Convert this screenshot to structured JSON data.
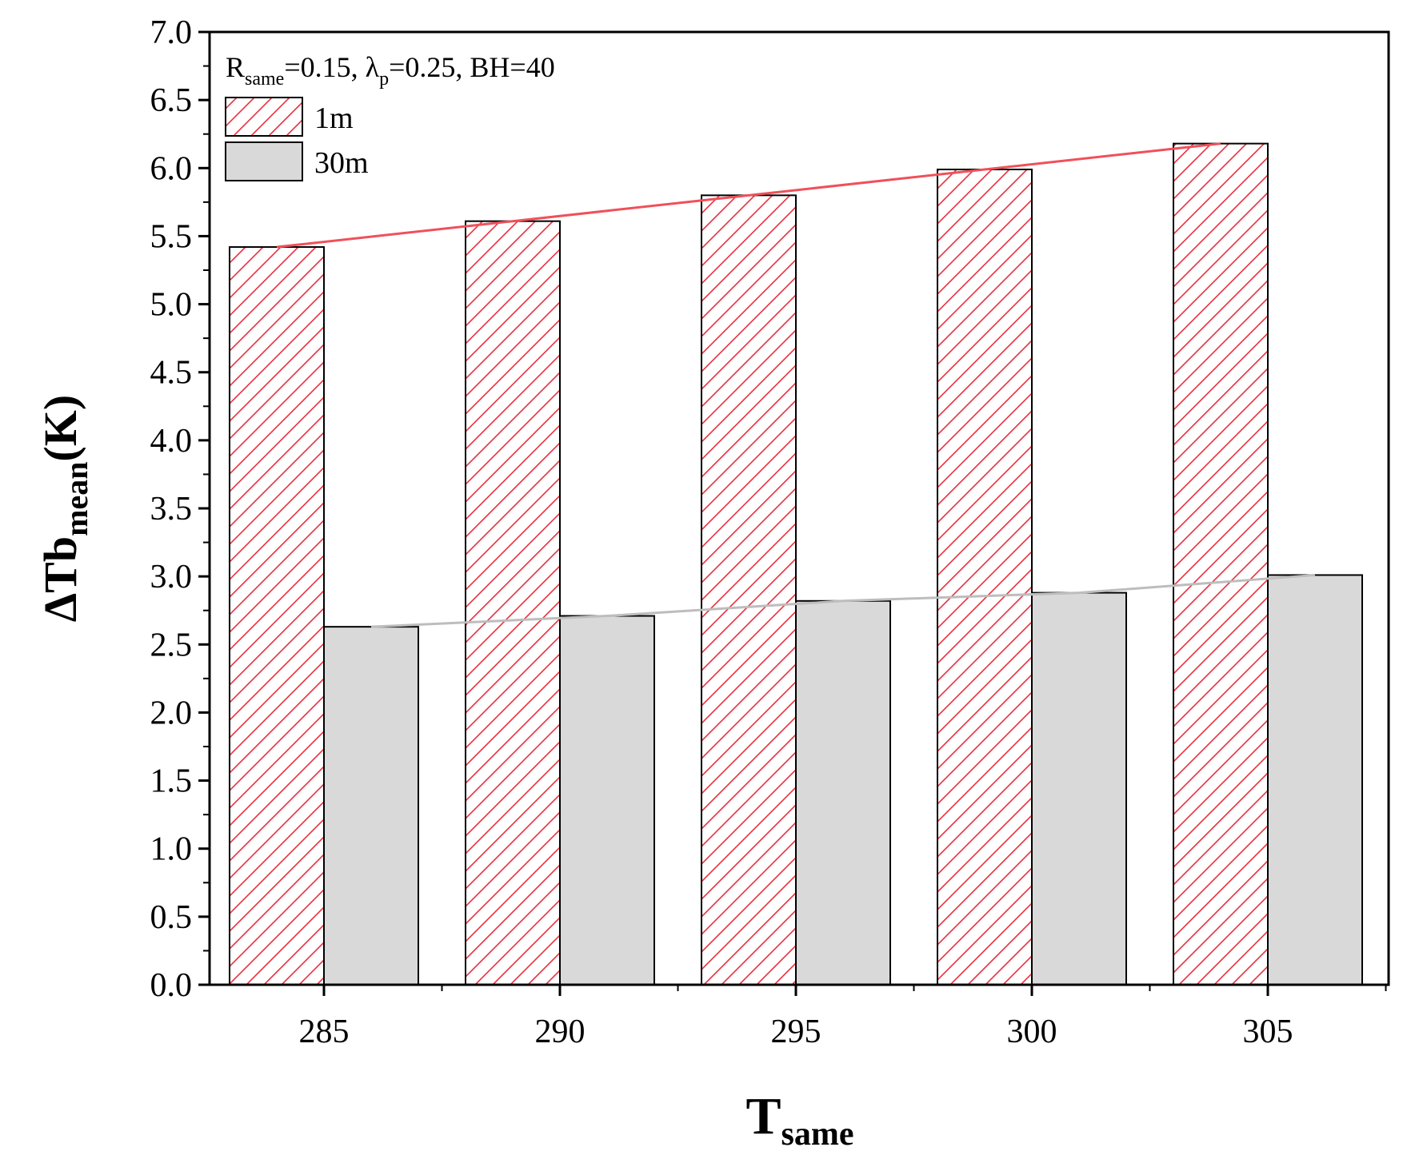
{
  "chart_data": {
    "type": "bar",
    "categories": [
      "285",
      "290",
      "295",
      "300",
      "305"
    ],
    "series": [
      {
        "name": "1m",
        "values": [
          5.42,
          5.61,
          5.8,
          5.99,
          6.18
        ],
        "color": "#e8303f",
        "pattern": "hatch",
        "trend_color": "#f0505a"
      },
      {
        "name": "30m",
        "values": [
          2.63,
          2.71,
          2.82,
          2.88,
          3.01
        ],
        "color": "#d9d9d9",
        "pattern": "solid",
        "trend_color": "#bdbdbd"
      }
    ],
    "ylim": [
      0,
      7.0
    ],
    "yticks": [
      "0.0",
      "0.5",
      "1.0",
      "1.5",
      "2.0",
      "2.5",
      "3.0",
      "3.5",
      "4.0",
      "4.5",
      "5.0",
      "5.5",
      "6.0",
      "6.5",
      "7.0"
    ],
    "ytick_values": [
      0,
      0.5,
      1.0,
      1.5,
      2.0,
      2.5,
      3.0,
      3.5,
      4.0,
      4.5,
      5.0,
      5.5,
      6.0,
      6.5,
      7.0
    ],
    "xlabel": {
      "main": "T",
      "sub": "same"
    },
    "ylabel": {
      "prefix": "ΔTb",
      "sub": "mean",
      "suffix": "(K)"
    },
    "annotation": {
      "r": "R",
      "r_sub": "same",
      "r_val": "=0.15, ",
      "lambda": "λ",
      "lambda_sub": "p",
      "lambda_val": "=0.25, BH=40"
    },
    "legend_position": "top-left",
    "grid": false
  }
}
